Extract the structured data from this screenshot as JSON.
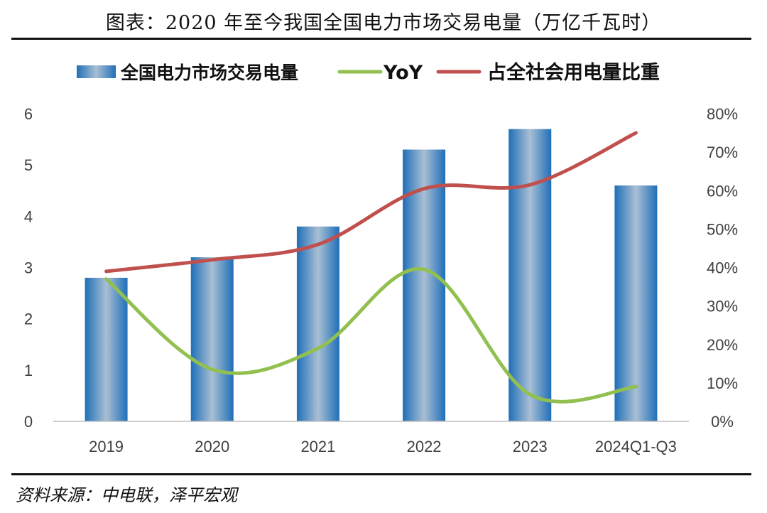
{
  "header": {
    "title": "图表：2020 年至今我国全国电力市场交易电量（万亿千瓦时）"
  },
  "footer": {
    "source": "资料来源：中电联，泽平宏观"
  },
  "chart_data": {
    "type": "bar",
    "title": "图表：2020 年至今我国全国电力市场交易电量（万亿千瓦时）",
    "categories": [
      "2019",
      "2020",
      "2021",
      "2022",
      "2023",
      "2024Q1-Q3"
    ],
    "series": [
      {
        "name": "全国电力市场交易电量",
        "type": "bar",
        "axis": "left",
        "values": [
          2.8,
          3.2,
          3.8,
          5.3,
          5.7,
          4.6
        ]
      },
      {
        "name": "YoY",
        "type": "line",
        "axis": "right",
        "values": [
          37,
          13.5,
          19,
          39.5,
          7,
          9
        ]
      },
      {
        "name": "占全社会用电量比重",
        "type": "line",
        "axis": "right",
        "values": [
          39,
          42,
          46,
          60.5,
          61.5,
          75
        ]
      }
    ],
    "y_left": {
      "min": 0,
      "max": 6,
      "ticks": [
        "0",
        "1",
        "2",
        "3",
        "4",
        "5",
        "6"
      ]
    },
    "y_right": {
      "min": 0,
      "max": 80,
      "ticks": [
        "0%",
        "10%",
        "20%",
        "30%",
        "40%",
        "50%",
        "60%",
        "70%",
        "80%"
      ]
    },
    "legend_position": "top-center",
    "colors": {
      "bar_edge": "#1f6fb8",
      "bar_mid": "#a9bfd4",
      "yoy": "#92c050",
      "share": "#c0504d",
      "axis": "#bfbfbf",
      "text": "#404040"
    }
  }
}
